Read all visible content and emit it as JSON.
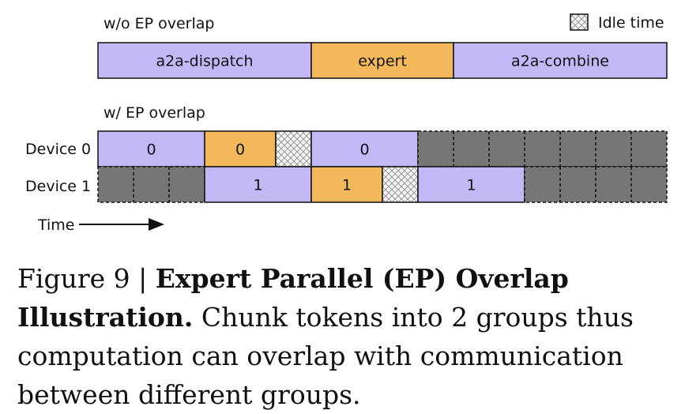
{
  "legend": {
    "label": "Idle time"
  },
  "without_overlap": {
    "title": "w/o EP overlap",
    "blocks": [
      {
        "label": "a2a-dispatch",
        "kind": "comm"
      },
      {
        "label": "expert",
        "kind": "expert"
      },
      {
        "label": "a2a-combine",
        "kind": "comm"
      }
    ]
  },
  "with_overlap": {
    "title": "w/ EP overlap",
    "devices": [
      {
        "label": "Device 0",
        "blocks": [
          {
            "label": "0",
            "kind": "comm"
          },
          {
            "label": "0",
            "kind": "expert"
          },
          {
            "label": "",
            "kind": "idle"
          },
          {
            "label": "0",
            "kind": "comm"
          },
          {
            "label": "",
            "kind": "wait"
          }
        ]
      },
      {
        "label": "Device 1",
        "blocks": [
          {
            "label": "",
            "kind": "wait"
          },
          {
            "label": "1",
            "kind": "comm"
          },
          {
            "label": "1",
            "kind": "expert"
          },
          {
            "label": "",
            "kind": "idle"
          },
          {
            "label": "1",
            "kind": "comm"
          },
          {
            "label": "",
            "kind": "wait"
          }
        ]
      }
    ]
  },
  "time_axis": {
    "label": "Time"
  },
  "caption": {
    "prefix": "Figure 9 | ",
    "title": "Expert Parallel (EP) Overlap Illustration.",
    "text": " Chunk tokens into 2 groups thus computation can overlap with communication between different groups."
  },
  "colors": {
    "comm": "#c2b8f5",
    "expert": "#f2b85a",
    "wait": "#767676",
    "idle_bg": "#f2f2f2",
    "idle_hatch": "#9a9a9a"
  }
}
